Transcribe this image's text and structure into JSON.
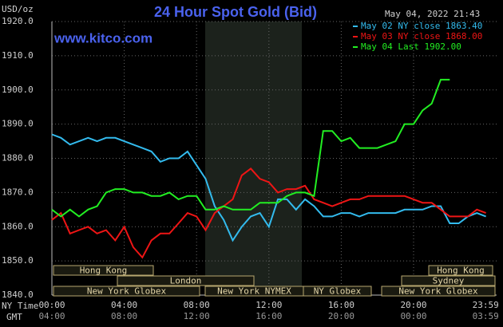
{
  "chart_data": {
    "type": "line",
    "title": "24 Hour Spot Gold (Bid)",
    "subtitle": "May 04, 2022 21:43",
    "source": "www.kitco.com",
    "y_label": "USD/oz",
    "x_label": "NY Time",
    "x2_label": "GMT",
    "x": [
      0,
      0.5,
      1,
      1.5,
      2,
      2.5,
      3,
      3.5,
      4,
      4.5,
      5,
      5.5,
      6,
      6.5,
      7,
      7.5,
      8,
      8.5,
      9,
      9.5,
      10,
      10.5,
      11,
      11.5,
      12,
      12.5,
      13,
      13.5,
      14,
      14.5,
      15,
      15.5,
      16,
      16.5,
      17,
      17.5,
      18,
      18.5,
      19,
      19.5,
      20,
      20.5,
      21,
      21.5,
      22,
      22.5,
      23,
      23.5,
      24
    ],
    "series": [
      {
        "name": "May 02 NY close 1863.40",
        "color": "#33bbee",
        "values": [
          1887,
          1886,
          1884,
          1885,
          1886,
          1885,
          1886,
          1886,
          1885,
          1884,
          1883,
          1882,
          1879,
          1880,
          1880,
          1882,
          1878,
          1874,
          1866,
          1862,
          1856,
          1860,
          1863,
          1864,
          1860,
          1868,
          1868,
          1865,
          1868,
          1866,
          1863,
          1863,
          1864,
          1864,
          1863,
          1864,
          1864,
          1864,
          1864,
          1865,
          1865,
          1865,
          1866,
          1866,
          1861,
          1861,
          1863,
          1864,
          1863
        ]
      },
      {
        "name": "May 03 NY close 1868.00",
        "color": "#ee1515",
        "values": [
          1862,
          1864,
          1858,
          1859,
          1860,
          1858,
          1859,
          1856,
          1860,
          1854,
          1851,
          1856,
          1858,
          1858,
          1861,
          1864,
          1863,
          1859,
          1864,
          1866,
          1868,
          1875,
          1877,
          1874,
          1873,
          1870,
          1871,
          1871,
          1872,
          1868,
          1867,
          1866,
          1867,
          1868,
          1868,
          1869,
          1869,
          1869,
          1869,
          1869,
          1868,
          1867,
          1867,
          1865,
          1863,
          1863,
          1863,
          1865,
          1864
        ]
      },
      {
        "name": "May 04 Last 1902.00",
        "color": "#22ee22",
        "values": [
          1865,
          1863,
          1865,
          1863,
          1865,
          1866,
          1870,
          1871,
          1871,
          1870,
          1870,
          1869,
          1869,
          1870,
          1868,
          1869,
          1869,
          1865,
          1865,
          1866,
          1865,
          1865,
          1865,
          1867,
          1867,
          1867,
          1869,
          1870,
          1870,
          1869,
          1888,
          1888,
          1885,
          1886,
          1883,
          1883,
          1883,
          1884,
          1885,
          1890,
          1890,
          1894,
          1896,
          1903,
          1903,
          null,
          null,
          null,
          null
        ]
      }
    ],
    "xlim": [
      0,
      24
    ],
    "xticks": [
      {
        "value": 0,
        "label": "00:00"
      },
      {
        "value": 4,
        "label": "04:00"
      },
      {
        "value": 8,
        "label": "08:00"
      },
      {
        "value": 12,
        "label": "12:00"
      },
      {
        "value": 16,
        "label": "16:00"
      },
      {
        "value": 20,
        "label": "20:00"
      },
      {
        "value": 23.983,
        "label": "23:59"
      }
    ],
    "x2ticks": [
      {
        "value": 0,
        "label": "04:00"
      },
      {
        "value": 4,
        "label": "08:00"
      },
      {
        "value": 8,
        "label": "12:00"
      },
      {
        "value": 12,
        "label": "16:00"
      },
      {
        "value": 16,
        "label": "20:00"
      },
      {
        "value": 20,
        "label": "00:00"
      },
      {
        "value": 23.983,
        "label": "03:59"
      }
    ],
    "ylim": [
      1840,
      1920
    ],
    "yticks": [
      {
        "value": 1840,
        "label": "1840.0"
      },
      {
        "value": 1850,
        "label": "1850.0"
      },
      {
        "value": 1860,
        "label": "1860.0"
      },
      {
        "value": 1870,
        "label": "1870.0"
      },
      {
        "value": 1880,
        "label": "1880.0"
      },
      {
        "value": 1890,
        "label": "1890.0"
      },
      {
        "value": 1900,
        "label": "1900.0"
      },
      {
        "value": 1910,
        "label": "1910.0"
      },
      {
        "value": 1920,
        "label": "1920.0"
      }
    ],
    "grid": true,
    "sessions": [
      "Hong Kong",
      "London",
      "New York Globex",
      "New York NYMEX",
      "NY Globex",
      "New York Globex",
      "Sydney",
      "Hong Kong"
    ]
  }
}
